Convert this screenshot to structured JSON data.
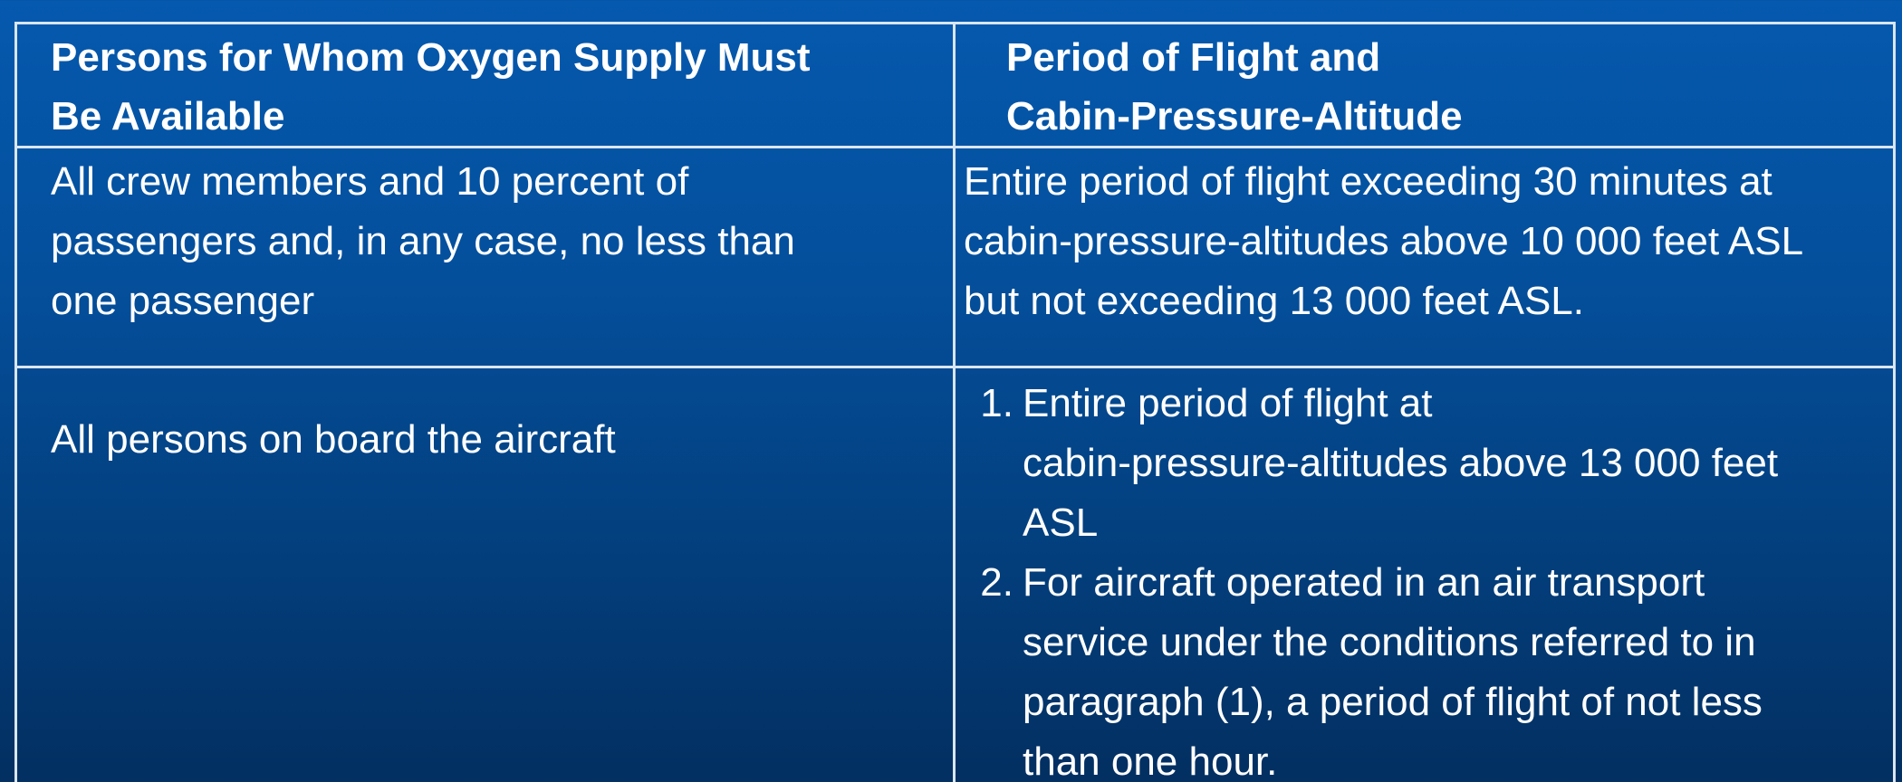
{
  "table": {
    "headers": {
      "persons_line1": "Persons for Whom Oxygen Supply Must",
      "persons_line2": "Be Available",
      "period_line1": "Period of Flight and",
      "period_line2": "Cabin-Pressure-Altitude"
    },
    "rows": [
      {
        "persons": {
          "line1": "All crew members and 10 percent of",
          "line2": "passengers and, in any case, no less than",
          "line3": "one passenger"
        },
        "period": {
          "line1": "Entire period of flight exceeding 30 minutes at",
          "line2": "cabin-pressure-altitudes above 10 000 feet ASL",
          "line3": "but not exceeding 13 000 feet ASL."
        }
      },
      {
        "persons": {
          "line1": "All persons on board the aircraft"
        },
        "period": {
          "items": [
            {
              "number": "1.",
              "line1": "Entire period of flight at",
              "line2": "cabin-pressure-altitudes above 13 000 feet",
              "line3": "ASL"
            },
            {
              "number": "2.",
              "line1": "For aircraft operated in an air transport",
              "line2": "service under the conditions referred to in",
              "line3": "paragraph (1), a period of flight of not less",
              "line4": "than one hour."
            }
          ]
        }
      }
    ]
  }
}
